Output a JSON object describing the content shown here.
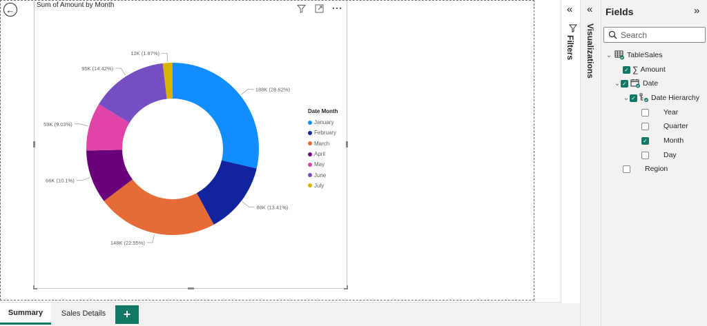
{
  "canvas": {
    "back_icon": "back-arrow-icon",
    "visual": {
      "title": "Sum of Amount by Month",
      "icons": [
        "filter-icon",
        "focus-mode-icon",
        "more-options-icon"
      ]
    }
  },
  "chart_data": {
    "type": "pie",
    "subtype": "donut",
    "title": "Sum of Amount by Month",
    "legend_title": "Date Month",
    "legend_position": "right",
    "slices": [
      {
        "label": "January",
        "value": 188,
        "display": "188K (28.62%)",
        "color": "#118DFF"
      },
      {
        "label": "February",
        "value": 88,
        "display": "88K (13.41%)",
        "color": "#12239E"
      },
      {
        "label": "March",
        "value": 148,
        "display": "148K (22.55%)",
        "color": "#E66C37"
      },
      {
        "label": "April",
        "value": 66,
        "display": "66K (10.1%)",
        "color": "#6B007B"
      },
      {
        "label": "May",
        "value": 59,
        "display": "59K (9.03%)",
        "color": "#E044A7"
      },
      {
        "label": "June",
        "value": 95,
        "display": "95K (14.42%)",
        "color": "#744EC2"
      },
      {
        "label": "July",
        "value": 12,
        "display": "12K (1.87%)",
        "color": "#D9B300"
      }
    ]
  },
  "tabs": {
    "items": [
      {
        "label": "Summary",
        "active": true
      },
      {
        "label": "Sales Details",
        "active": false
      }
    ],
    "add_label": "+"
  },
  "filters_pane": {
    "label": "Filters",
    "collapse_icon": "double-chevron-left-icon",
    "icon": "filter-icon"
  },
  "viz_pane": {
    "label": "Visualizations",
    "collapse_icon": "double-chevron-left-icon"
  },
  "fields_pane": {
    "title": "Fields",
    "collapse_icon": "double-chevron-right-icon",
    "search_placeholder": "Search",
    "table": "TableSales",
    "fields": {
      "amount": "Amount",
      "date": "Date",
      "date_hierarchy": "Date Hierarchy",
      "year": "Year",
      "quarter": "Quarter",
      "month": "Month",
      "day": "Day",
      "region": "Region"
    }
  }
}
